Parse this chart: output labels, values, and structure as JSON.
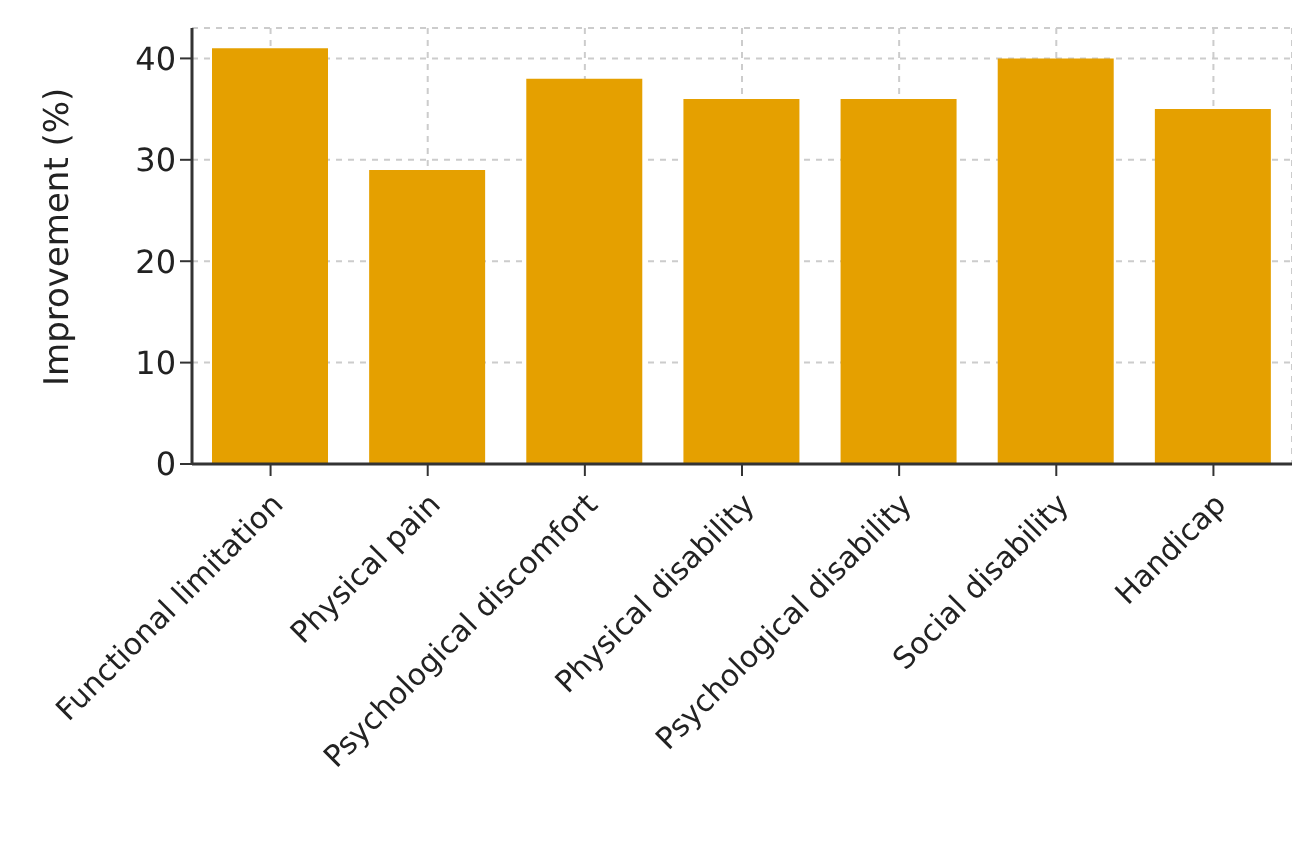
{
  "chart_data": {
    "type": "bar",
    "ylabel": "Improvement (%)",
    "categories": [
      "Functional limitation",
      "Physical pain",
      "Psychological discomfort",
      "Physical disability",
      "Psychological disability",
      "Social disability",
      "Handicap"
    ],
    "values": [
      41,
      29,
      38,
      36,
      36,
      40,
      35
    ],
    "color": "#e5a000",
    "ylim": [
      0,
      43
    ],
    "yticks": [
      0,
      10,
      20,
      30,
      40
    ],
    "grid": true
  }
}
